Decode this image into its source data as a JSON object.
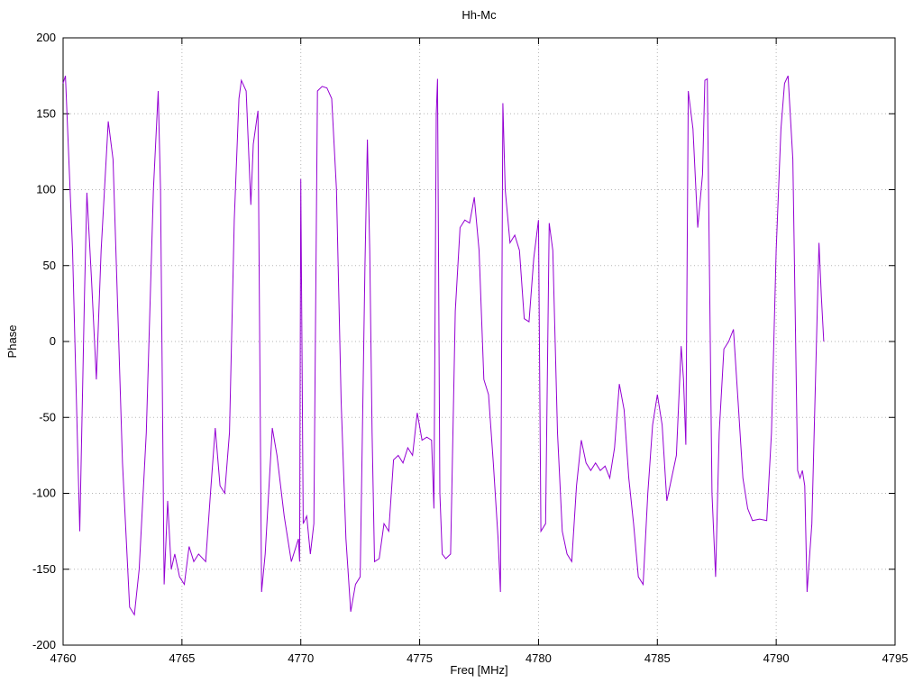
{
  "chart_data": {
    "type": "line",
    "title": "Hh-Mc",
    "xlabel": "Freq [MHz]",
    "ylabel": "Phase",
    "xlim": [
      4760,
      4795
    ],
    "ylim": [
      -200,
      200
    ],
    "xticks": [
      4760,
      4765,
      4770,
      4775,
      4780,
      4785,
      4790,
      4795
    ],
    "yticks": [
      -200,
      -150,
      -100,
      -50,
      0,
      50,
      100,
      150,
      200
    ],
    "grid": true,
    "legend": "none",
    "line_color": "#9400d3",
    "grid_color": "#b5b5b5",
    "border_color": "#000000",
    "series": [
      {
        "name": "Hh-Mc",
        "points": [
          [
            4760.0,
            170
          ],
          [
            4760.1,
            175
          ],
          [
            4760.4,
            60
          ],
          [
            4760.7,
            -125
          ],
          [
            4760.9,
            30
          ],
          [
            4761.0,
            98
          ],
          [
            4761.2,
            40
          ],
          [
            4761.4,
            -25
          ],
          [
            4761.6,
            60
          ],
          [
            4761.9,
            145
          ],
          [
            4762.1,
            120
          ],
          [
            4762.3,
            20
          ],
          [
            4762.5,
            -80
          ],
          [
            4762.8,
            -175
          ],
          [
            4763.0,
            -180
          ],
          [
            4763.2,
            -150
          ],
          [
            4763.5,
            -60
          ],
          [
            4763.8,
            100
          ],
          [
            4764.0,
            165
          ],
          [
            4764.1,
            100
          ],
          [
            4764.25,
            -160
          ],
          [
            4764.4,
            -105
          ],
          [
            4764.55,
            -150
          ],
          [
            4764.7,
            -140
          ],
          [
            4764.9,
            -155
          ],
          [
            4765.1,
            -160
          ],
          [
            4765.3,
            -135
          ],
          [
            4765.5,
            -145
          ],
          [
            4765.7,
            -140
          ],
          [
            4766.0,
            -145
          ],
          [
            4766.2,
            -100
          ],
          [
            4766.4,
            -57
          ],
          [
            4766.6,
            -95
          ],
          [
            4766.8,
            -100
          ],
          [
            4767.0,
            -60
          ],
          [
            4767.2,
            80
          ],
          [
            4767.4,
            160
          ],
          [
            4767.5,
            172
          ],
          [
            4767.7,
            165
          ],
          [
            4767.9,
            90
          ],
          [
            4768.0,
            130
          ],
          [
            4768.2,
            152
          ],
          [
            4768.35,
            -165
          ],
          [
            4768.5,
            -140
          ],
          [
            4768.8,
            -57
          ],
          [
            4769.0,
            -75
          ],
          [
            4769.3,
            -115
          ],
          [
            4769.6,
            -145
          ],
          [
            4769.9,
            -130
          ],
          [
            4769.95,
            -145
          ],
          [
            4770.0,
            107
          ],
          [
            4770.1,
            -120
          ],
          [
            4770.25,
            -115
          ],
          [
            4770.4,
            -140
          ],
          [
            4770.55,
            -120
          ],
          [
            4770.7,
            165
          ],
          [
            4770.9,
            168
          ],
          [
            4771.1,
            167
          ],
          [
            4771.3,
            160
          ],
          [
            4771.5,
            100
          ],
          [
            4771.7,
            -40
          ],
          [
            4771.9,
            -130
          ],
          [
            4772.1,
            -178
          ],
          [
            4772.3,
            -160
          ],
          [
            4772.5,
            -155
          ],
          [
            4772.7,
            50
          ],
          [
            4772.8,
            133
          ],
          [
            4772.9,
            60
          ],
          [
            4773.0,
            -60
          ],
          [
            4773.1,
            -145
          ],
          [
            4773.3,
            -143
          ],
          [
            4773.5,
            -120
          ],
          [
            4773.7,
            -125
          ],
          [
            4773.9,
            -78
          ],
          [
            4774.1,
            -75
          ],
          [
            4774.3,
            -80
          ],
          [
            4774.5,
            -70
          ],
          [
            4774.7,
            -75
          ],
          [
            4774.9,
            -47
          ],
          [
            4775.1,
            -65
          ],
          [
            4775.3,
            -63
          ],
          [
            4775.5,
            -65
          ],
          [
            4775.6,
            -110
          ],
          [
            4775.7,
            150
          ],
          [
            4775.75,
            173
          ],
          [
            4775.85,
            -100
          ],
          [
            4775.95,
            -140
          ],
          [
            4776.1,
            -143
          ],
          [
            4776.3,
            -140
          ],
          [
            4776.5,
            20
          ],
          [
            4776.7,
            75
          ],
          [
            4776.9,
            80
          ],
          [
            4777.1,
            78
          ],
          [
            4777.3,
            95
          ],
          [
            4777.5,
            60
          ],
          [
            4777.7,
            -25
          ],
          [
            4777.9,
            -35
          ],
          [
            4778.1,
            -80
          ],
          [
            4778.3,
            -130
          ],
          [
            4778.4,
            -165
          ],
          [
            4778.5,
            157
          ],
          [
            4778.6,
            100
          ],
          [
            4778.8,
            65
          ],
          [
            4779.0,
            70
          ],
          [
            4779.2,
            60
          ],
          [
            4779.4,
            15
          ],
          [
            4779.6,
            13
          ],
          [
            4779.8,
            55
          ],
          [
            4780.0,
            80
          ],
          [
            4780.1,
            -125
          ],
          [
            4780.3,
            -120
          ],
          [
            4780.45,
            78
          ],
          [
            4780.6,
            60
          ],
          [
            4780.8,
            -60
          ],
          [
            4781.0,
            -125
          ],
          [
            4781.2,
            -140
          ],
          [
            4781.4,
            -145
          ],
          [
            4781.6,
            -95
          ],
          [
            4781.8,
            -65
          ],
          [
            4782.0,
            -80
          ],
          [
            4782.2,
            -85
          ],
          [
            4782.4,
            -80
          ],
          [
            4782.6,
            -85
          ],
          [
            4782.8,
            -82
          ],
          [
            4783.0,
            -90
          ],
          [
            4783.2,
            -70
          ],
          [
            4783.4,
            -28
          ],
          [
            4783.6,
            -45
          ],
          [
            4783.8,
            -90
          ],
          [
            4784.0,
            -120
          ],
          [
            4784.2,
            -155
          ],
          [
            4784.4,
            -160
          ],
          [
            4784.6,
            -100
          ],
          [
            4784.8,
            -55
          ],
          [
            4785.0,
            -35
          ],
          [
            4785.2,
            -55
          ],
          [
            4785.4,
            -105
          ],
          [
            4785.6,
            -90
          ],
          [
            4785.8,
            -75
          ],
          [
            4786.0,
            -3
          ],
          [
            4786.1,
            -25
          ],
          [
            4786.2,
            -68
          ],
          [
            4786.3,
            165
          ],
          [
            4786.5,
            140
          ],
          [
            4786.7,
            75
          ],
          [
            4786.9,
            110
          ],
          [
            4787.0,
            172
          ],
          [
            4787.1,
            173
          ],
          [
            4787.3,
            -100
          ],
          [
            4787.45,
            -155
          ],
          [
            4787.6,
            -60
          ],
          [
            4787.8,
            -5
          ],
          [
            4788.0,
            0
          ],
          [
            4788.2,
            8
          ],
          [
            4788.4,
            -40
          ],
          [
            4788.6,
            -90
          ],
          [
            4788.8,
            -110
          ],
          [
            4789.0,
            -118
          ],
          [
            4789.3,
            -117
          ],
          [
            4789.6,
            -118
          ],
          [
            4789.8,
            -60
          ],
          [
            4790.0,
            60
          ],
          [
            4790.2,
            140
          ],
          [
            4790.35,
            170
          ],
          [
            4790.5,
            175
          ],
          [
            4790.7,
            120
          ],
          [
            4790.9,
            -85
          ],
          [
            4791.0,
            -90
          ],
          [
            4791.1,
            -85
          ],
          [
            4791.2,
            -95
          ],
          [
            4791.3,
            -165
          ],
          [
            4791.5,
            -120
          ],
          [
            4791.8,
            65
          ],
          [
            4791.9,
            30
          ],
          [
            4792.0,
            0
          ]
        ]
      }
    ]
  }
}
